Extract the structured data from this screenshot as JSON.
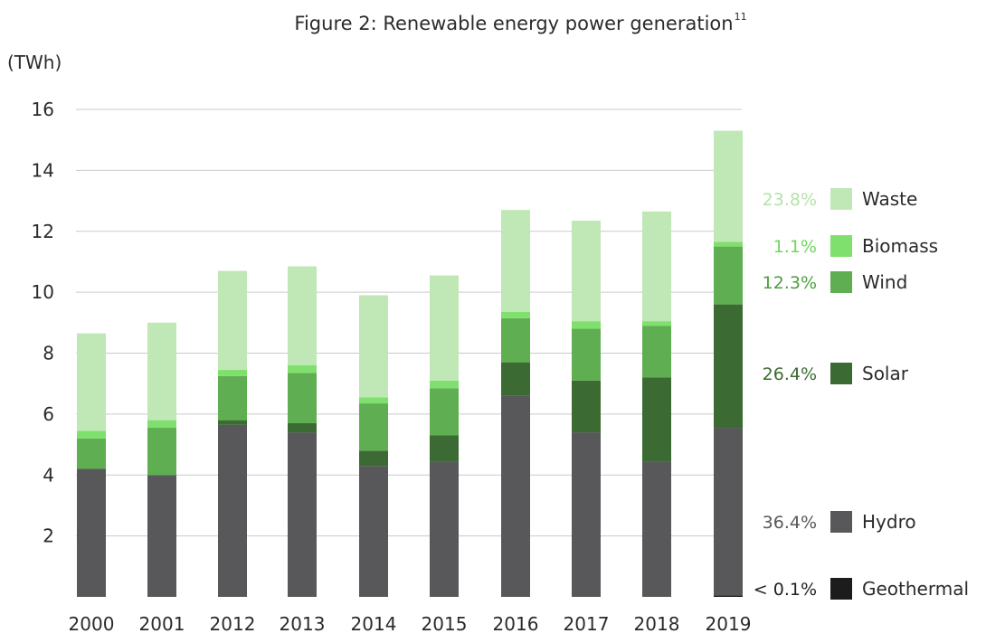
{
  "chart_data": {
    "type": "bar",
    "stacked": true,
    "title": "Figure 2: Renewable energy power generation",
    "title_footnote": "11",
    "ylabel": "(TWh)",
    "xlabel": "",
    "ylim": [
      0,
      16
    ],
    "yticks": [
      2,
      4,
      6,
      8,
      10,
      12,
      14,
      16
    ],
    "grid": true,
    "legend_position": "right",
    "categories": [
      "2000",
      "2001",
      "2012",
      "2013",
      "2014",
      "2015",
      "2016",
      "2017",
      "2018",
      "2019"
    ],
    "series": [
      {
        "name": "Geothermal",
        "color": "#1c1c1c",
        "share_2019": "< 0.1%",
        "share_color": "#222222",
        "values": [
          0,
          0,
          0,
          0,
          0,
          0,
          0,
          0,
          0,
          0.05
        ]
      },
      {
        "name": "Hydro",
        "color": "#58585a",
        "share_2019": "36.4%",
        "share_color": "#58585a",
        "values": [
          4.2,
          4.0,
          5.65,
          5.4,
          4.3,
          4.45,
          6.6,
          5.4,
          4.45,
          5.5
        ]
      },
      {
        "name": "Solar",
        "color": "#3b6b32",
        "share_2019": "26.4%",
        "share_color": "#3b6b32",
        "values": [
          0,
          0,
          0.15,
          0.3,
          0.5,
          0.85,
          1.1,
          1.7,
          2.75,
          4.05
        ]
      },
      {
        "name": "Wind",
        "color": "#5fae52",
        "share_2019": "12.3%",
        "share_color": "#4f9d43",
        "values": [
          1.0,
          1.55,
          1.45,
          1.65,
          1.55,
          1.55,
          1.45,
          1.7,
          1.7,
          1.9
        ]
      },
      {
        "name": "Biomass",
        "color": "#7fe06d",
        "share_2019": "1.1%",
        "share_color": "#6fd65c",
        "values": [
          0.25,
          0.25,
          0.2,
          0.25,
          0.2,
          0.25,
          0.2,
          0.25,
          0.15,
          0.15
        ]
      },
      {
        "name": "Waste",
        "color": "#bfe8b6",
        "share_2019": "23.8%",
        "share_color": "#b3e3a8",
        "values": [
          3.2,
          3.2,
          3.25,
          3.25,
          3.35,
          3.45,
          3.35,
          3.3,
          3.6,
          3.65
        ]
      }
    ]
  }
}
